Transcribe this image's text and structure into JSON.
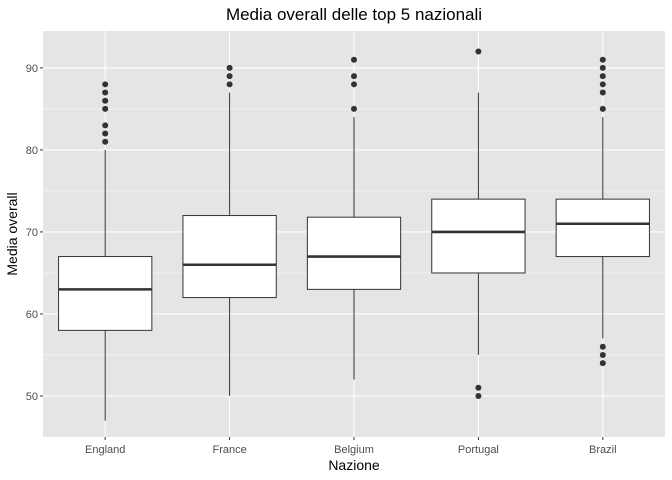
{
  "chart_data": {
    "type": "boxplot",
    "title": "Media overall delle top 5 nazionali",
    "xlabel": "Nazione",
    "ylabel": "Media overall",
    "ylim": [
      45,
      94.5
    ],
    "yticks": [
      50,
      60,
      70,
      80,
      90
    ],
    "grid": true,
    "categories": [
      "England",
      "France",
      "Belgium",
      "Portugal",
      "Brazil"
    ],
    "boxes": [
      {
        "name": "England",
        "whisker_low": 47,
        "q1": 58,
        "median": 63,
        "q3": 67,
        "whisker_high": 80,
        "outliers": [
          81,
          82,
          83,
          85,
          86,
          87,
          88
        ]
      },
      {
        "name": "France",
        "whisker_low": 50,
        "q1": 62,
        "median": 66,
        "q3": 72,
        "whisker_high": 87,
        "outliers": [
          88,
          89,
          90
        ]
      },
      {
        "name": "Belgium",
        "whisker_low": 52,
        "q1": 63,
        "median": 67,
        "q3": 71.8,
        "whisker_high": 84,
        "outliers": [
          85,
          88,
          89,
          91
        ]
      },
      {
        "name": "Portugal",
        "whisker_low": 55,
        "q1": 65,
        "median": 70,
        "q3": 74,
        "whisker_high": 87,
        "outliers": [
          50,
          51,
          92
        ]
      },
      {
        "name": "Brazil",
        "whisker_low": 57,
        "q1": 67,
        "median": 71,
        "q3": 74,
        "whisker_high": 84,
        "outliers": [
          54,
          55,
          56,
          85,
          87,
          88,
          89,
          90,
          91
        ]
      }
    ],
    "colors": {
      "panel": "#e5e5e5",
      "grid": "#ffffff",
      "box_fill": "#ffffff",
      "line": "#333333"
    }
  }
}
